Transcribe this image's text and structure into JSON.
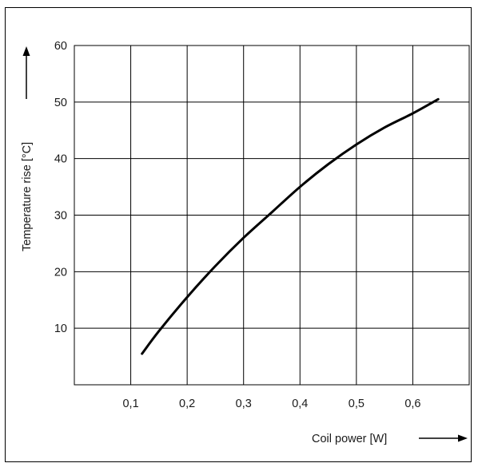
{
  "chart_data": {
    "type": "line",
    "xlabel": "Coil power [W]",
    "ylabel": "Temperature rise [°C]",
    "xlim": [
      0,
      0.7
    ],
    "ylim": [
      0,
      60
    ],
    "x_ticks": [
      0.1,
      0.2,
      0.3,
      0.4,
      0.5,
      0.6
    ],
    "x_tick_labels": [
      "0,1",
      "0,2",
      "0,3",
      "0,4",
      "0,5",
      "0,6"
    ],
    "y_ticks": [
      10,
      20,
      30,
      40,
      50,
      60
    ],
    "y_tick_labels": [
      "10",
      "20",
      "30",
      "40",
      "50",
      "60"
    ],
    "grid": true,
    "series": [
      {
        "x": [
          0.12,
          0.15,
          0.2,
          0.25,
          0.3,
          0.35,
          0.4,
          0.45,
          0.5,
          0.55,
          0.6,
          0.645
        ],
        "values": [
          5.5,
          9.5,
          15.5,
          21,
          26,
          30.5,
          35,
          39,
          42.5,
          45.5,
          48,
          50.5
        ],
        "color": "#000000"
      }
    ]
  }
}
